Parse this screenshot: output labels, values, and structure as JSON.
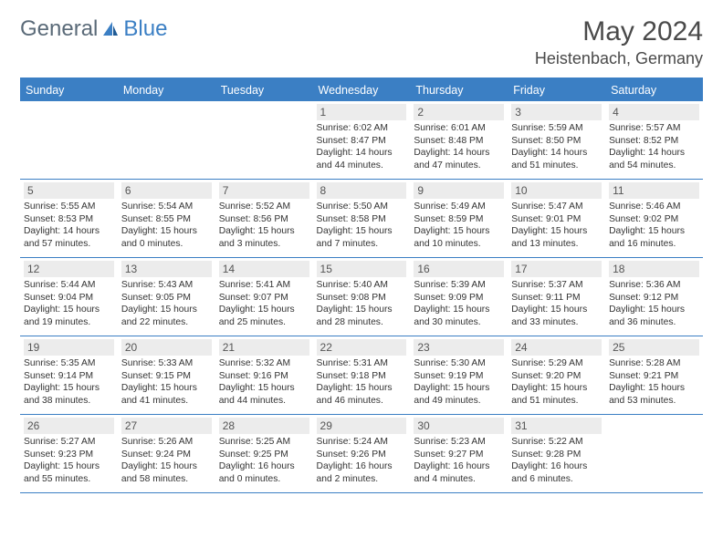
{
  "logo": {
    "t1": "General",
    "t2": "Blue"
  },
  "title": "May 2024",
  "location": "Heistenbach, Germany",
  "colors": {
    "brand": "#3b7fc4",
    "bg": "#ffffff",
    "cellbg": "#ececec",
    "text": "#333333"
  },
  "dayHeaders": [
    "Sunday",
    "Monday",
    "Tuesday",
    "Wednesday",
    "Thursday",
    "Friday",
    "Saturday"
  ],
  "weeks": [
    [
      {
        "n": "",
        "sr": "",
        "ss": "",
        "dl": ""
      },
      {
        "n": "",
        "sr": "",
        "ss": "",
        "dl": ""
      },
      {
        "n": "",
        "sr": "",
        "ss": "",
        "dl": ""
      },
      {
        "n": "1",
        "sr": "6:02 AM",
        "ss": "8:47 PM",
        "dl": "14 hours and 44 minutes."
      },
      {
        "n": "2",
        "sr": "6:01 AM",
        "ss": "8:48 PM",
        "dl": "14 hours and 47 minutes."
      },
      {
        "n": "3",
        "sr": "5:59 AM",
        "ss": "8:50 PM",
        "dl": "14 hours and 51 minutes."
      },
      {
        "n": "4",
        "sr": "5:57 AM",
        "ss": "8:52 PM",
        "dl": "14 hours and 54 minutes."
      }
    ],
    [
      {
        "n": "5",
        "sr": "5:55 AM",
        "ss": "8:53 PM",
        "dl": "14 hours and 57 minutes."
      },
      {
        "n": "6",
        "sr": "5:54 AM",
        "ss": "8:55 PM",
        "dl": "15 hours and 0 minutes."
      },
      {
        "n": "7",
        "sr": "5:52 AM",
        "ss": "8:56 PM",
        "dl": "15 hours and 3 minutes."
      },
      {
        "n": "8",
        "sr": "5:50 AM",
        "ss": "8:58 PM",
        "dl": "15 hours and 7 minutes."
      },
      {
        "n": "9",
        "sr": "5:49 AM",
        "ss": "8:59 PM",
        "dl": "15 hours and 10 minutes."
      },
      {
        "n": "10",
        "sr": "5:47 AM",
        "ss": "9:01 PM",
        "dl": "15 hours and 13 minutes."
      },
      {
        "n": "11",
        "sr": "5:46 AM",
        "ss": "9:02 PM",
        "dl": "15 hours and 16 minutes."
      }
    ],
    [
      {
        "n": "12",
        "sr": "5:44 AM",
        "ss": "9:04 PM",
        "dl": "15 hours and 19 minutes."
      },
      {
        "n": "13",
        "sr": "5:43 AM",
        "ss": "9:05 PM",
        "dl": "15 hours and 22 minutes."
      },
      {
        "n": "14",
        "sr": "5:41 AM",
        "ss": "9:07 PM",
        "dl": "15 hours and 25 minutes."
      },
      {
        "n": "15",
        "sr": "5:40 AM",
        "ss": "9:08 PM",
        "dl": "15 hours and 28 minutes."
      },
      {
        "n": "16",
        "sr": "5:39 AM",
        "ss": "9:09 PM",
        "dl": "15 hours and 30 minutes."
      },
      {
        "n": "17",
        "sr": "5:37 AM",
        "ss": "9:11 PM",
        "dl": "15 hours and 33 minutes."
      },
      {
        "n": "18",
        "sr": "5:36 AM",
        "ss": "9:12 PM",
        "dl": "15 hours and 36 minutes."
      }
    ],
    [
      {
        "n": "19",
        "sr": "5:35 AM",
        "ss": "9:14 PM",
        "dl": "15 hours and 38 minutes."
      },
      {
        "n": "20",
        "sr": "5:33 AM",
        "ss": "9:15 PM",
        "dl": "15 hours and 41 minutes."
      },
      {
        "n": "21",
        "sr": "5:32 AM",
        "ss": "9:16 PM",
        "dl": "15 hours and 44 minutes."
      },
      {
        "n": "22",
        "sr": "5:31 AM",
        "ss": "9:18 PM",
        "dl": "15 hours and 46 minutes."
      },
      {
        "n": "23",
        "sr": "5:30 AM",
        "ss": "9:19 PM",
        "dl": "15 hours and 49 minutes."
      },
      {
        "n": "24",
        "sr": "5:29 AM",
        "ss": "9:20 PM",
        "dl": "15 hours and 51 minutes."
      },
      {
        "n": "25",
        "sr": "5:28 AM",
        "ss": "9:21 PM",
        "dl": "15 hours and 53 minutes."
      }
    ],
    [
      {
        "n": "26",
        "sr": "5:27 AM",
        "ss": "9:23 PM",
        "dl": "15 hours and 55 minutes."
      },
      {
        "n": "27",
        "sr": "5:26 AM",
        "ss": "9:24 PM",
        "dl": "15 hours and 58 minutes."
      },
      {
        "n": "28",
        "sr": "5:25 AM",
        "ss": "9:25 PM",
        "dl": "16 hours and 0 minutes."
      },
      {
        "n": "29",
        "sr": "5:24 AM",
        "ss": "9:26 PM",
        "dl": "16 hours and 2 minutes."
      },
      {
        "n": "30",
        "sr": "5:23 AM",
        "ss": "9:27 PM",
        "dl": "16 hours and 4 minutes."
      },
      {
        "n": "31",
        "sr": "5:22 AM",
        "ss": "9:28 PM",
        "dl": "16 hours and 6 minutes."
      },
      {
        "n": "",
        "sr": "",
        "ss": "",
        "dl": ""
      }
    ]
  ]
}
